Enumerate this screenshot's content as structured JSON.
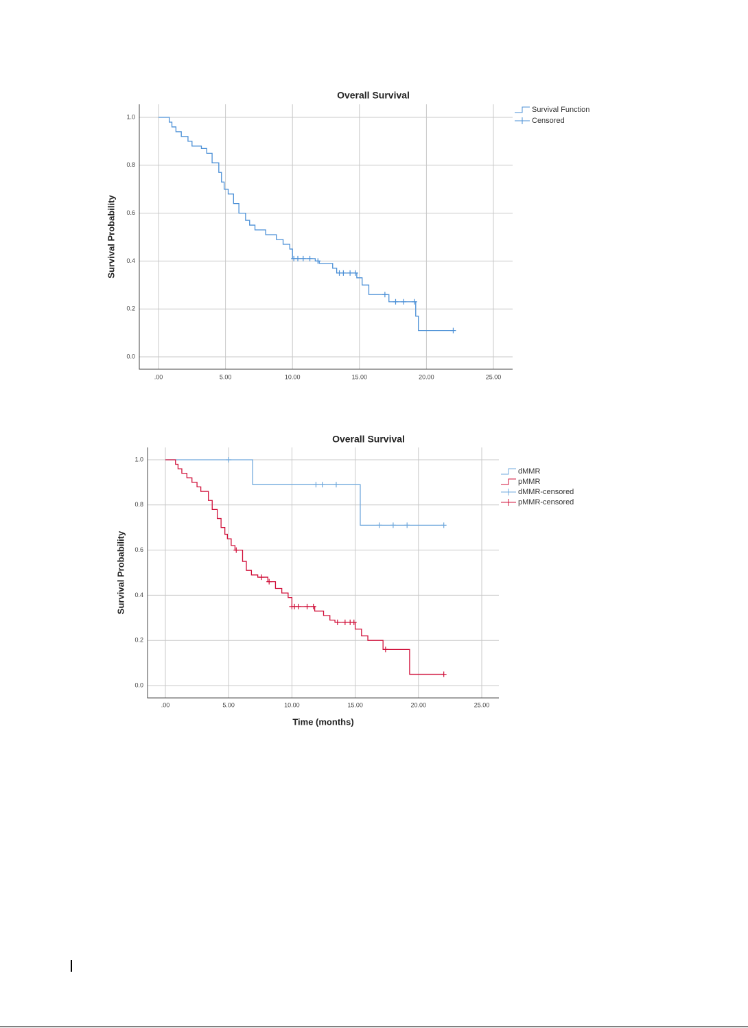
{
  "chart_data": [
    {
      "type": "km",
      "title": "Overall Survival",
      "y_label": "Survival Probability",
      "xlim": [
        0,
        25
      ],
      "ylim": [
        0,
        1
      ],
      "grid": true,
      "legend": "right",
      "xticks": [
        {
          "value": 0,
          "label": ".00"
        },
        {
          "value": 5,
          "label": "5.00"
        },
        {
          "value": 10,
          "label": "10.00"
        },
        {
          "value": 15,
          "label": "15.00"
        },
        {
          "value": 20,
          "label": "20.00"
        },
        {
          "value": 25,
          "label": "25.00"
        }
      ],
      "yticks": [
        {
          "value": 0,
          "label": "0.0"
        },
        {
          "value": 0.2,
          "label": "0.2"
        },
        {
          "value": 0.4,
          "label": "0.4"
        },
        {
          "value": 0.6,
          "label": "0.6"
        },
        {
          "value": 0.8,
          "label": "0.8"
        },
        {
          "value": 1,
          "label": "1.0"
        }
      ],
      "series": [
        {
          "name": "Survival Function",
          "color": "#4a8fd6",
          "marker": "step",
          "x": [
            0,
            0.8,
            1.0,
            1.3,
            1.7,
            2.2,
            2.5,
            3.2,
            3.6,
            4.0,
            4.5,
            4.7,
            4.9,
            5.2,
            5.6,
            6.0,
            6.5,
            6.8,
            7.2,
            8.0,
            8.8,
            9.3,
            9.8,
            10.0,
            11.7,
            12.0,
            13.0,
            13.3,
            14.8,
            15.2,
            15.7,
            17.2,
            19.2,
            19.4,
            22.0
          ],
          "values": [
            1.0,
            0.98,
            0.96,
            0.94,
            0.92,
            0.9,
            0.88,
            0.87,
            0.85,
            0.81,
            0.77,
            0.73,
            0.7,
            0.68,
            0.64,
            0.6,
            0.57,
            0.55,
            0.53,
            0.51,
            0.49,
            0.47,
            0.45,
            0.41,
            0.4,
            0.39,
            0.37,
            0.35,
            0.33,
            0.3,
            0.26,
            0.23,
            0.17,
            0.11,
            0.11
          ]
        },
        {
          "name": "Censored",
          "color": "#4a8fd6",
          "marker": "plus",
          "x": [
            10.1,
            10.4,
            10.8,
            11.3,
            11.9,
            13.5,
            13.8,
            14.3,
            14.7,
            16.9,
            17.7,
            18.3,
            19.1,
            22.0
          ],
          "values": [
            0.41,
            0.41,
            0.41,
            0.41,
            0.4,
            0.35,
            0.35,
            0.35,
            0.35,
            0.26,
            0.23,
            0.23,
            0.23,
            0.11
          ]
        }
      ]
    },
    {
      "type": "km",
      "title": "Overall Survival",
      "y_label": "Survival Probability",
      "x_label": "Time (months)",
      "xlim": [
        0,
        25
      ],
      "ylim": [
        0,
        1
      ],
      "grid": true,
      "legend": "right",
      "xticks": [
        {
          "value": 0,
          "label": ".00"
        },
        {
          "value": 5,
          "label": "5.00"
        },
        {
          "value": 10,
          "label": "10.00"
        },
        {
          "value": 15,
          "label": "15.00"
        },
        {
          "value": 20,
          "label": "20.00"
        },
        {
          "value": 25,
          "label": "25.00"
        }
      ],
      "yticks": [
        {
          "value": 0,
          "label": "0.0"
        },
        {
          "value": 0.2,
          "label": "0.2"
        },
        {
          "value": 0.4,
          "label": "0.4"
        },
        {
          "value": 0.6,
          "label": "0.6"
        },
        {
          "value": 0.8,
          "label": "0.8"
        },
        {
          "value": 1,
          "label": "1.0"
        }
      ],
      "series": [
        {
          "name": "dMMR",
          "color": "#6fa8dc",
          "marker": "step",
          "x": [
            0,
            6.9,
            15.4,
            22.0
          ],
          "values": [
            1.0,
            0.89,
            0.71,
            0.71
          ]
        },
        {
          "name": "pMMR",
          "color": "#d0103a",
          "marker": "step",
          "x": [
            0,
            0.8,
            1.0,
            1.3,
            1.7,
            2.1,
            2.5,
            2.8,
            3.4,
            3.7,
            4.1,
            4.4,
            4.7,
            4.9,
            5.2,
            5.5,
            6.1,
            6.4,
            6.8,
            7.3,
            8.1,
            8.7,
            9.2,
            9.7,
            10.0,
            11.8,
            12.5,
            13.0,
            13.4,
            15.0,
            15.5,
            16.0,
            17.2,
            19.3,
            22.0
          ],
          "values": [
            1.0,
            0.98,
            0.96,
            0.94,
            0.92,
            0.9,
            0.88,
            0.86,
            0.82,
            0.78,
            0.74,
            0.7,
            0.67,
            0.65,
            0.62,
            0.6,
            0.55,
            0.51,
            0.49,
            0.48,
            0.46,
            0.43,
            0.41,
            0.39,
            0.35,
            0.33,
            0.31,
            0.29,
            0.28,
            0.25,
            0.22,
            0.2,
            0.16,
            0.05,
            0.05
          ]
        },
        {
          "name": "dMMR-censored",
          "color": "#6fa8dc",
          "marker": "plus",
          "x": [
            5.0,
            11.9,
            12.4,
            13.5,
            16.9,
            18.0,
            19.1,
            22.0
          ],
          "values": [
            1.0,
            0.89,
            0.89,
            0.89,
            0.71,
            0.71,
            0.71,
            0.71
          ]
        },
        {
          "name": "pMMR-censored",
          "color": "#d0103a",
          "marker": "plus",
          "x": [
            5.6,
            7.6,
            8.2,
            10.0,
            10.2,
            10.5,
            11.2,
            11.7,
            13.6,
            14.2,
            14.6,
            14.9,
            17.4,
            22.0
          ],
          "values": [
            0.6,
            0.48,
            0.46,
            0.35,
            0.35,
            0.35,
            0.35,
            0.35,
            0.28,
            0.28,
            0.28,
            0.28,
            0.16,
            0.05
          ]
        }
      ]
    }
  ]
}
